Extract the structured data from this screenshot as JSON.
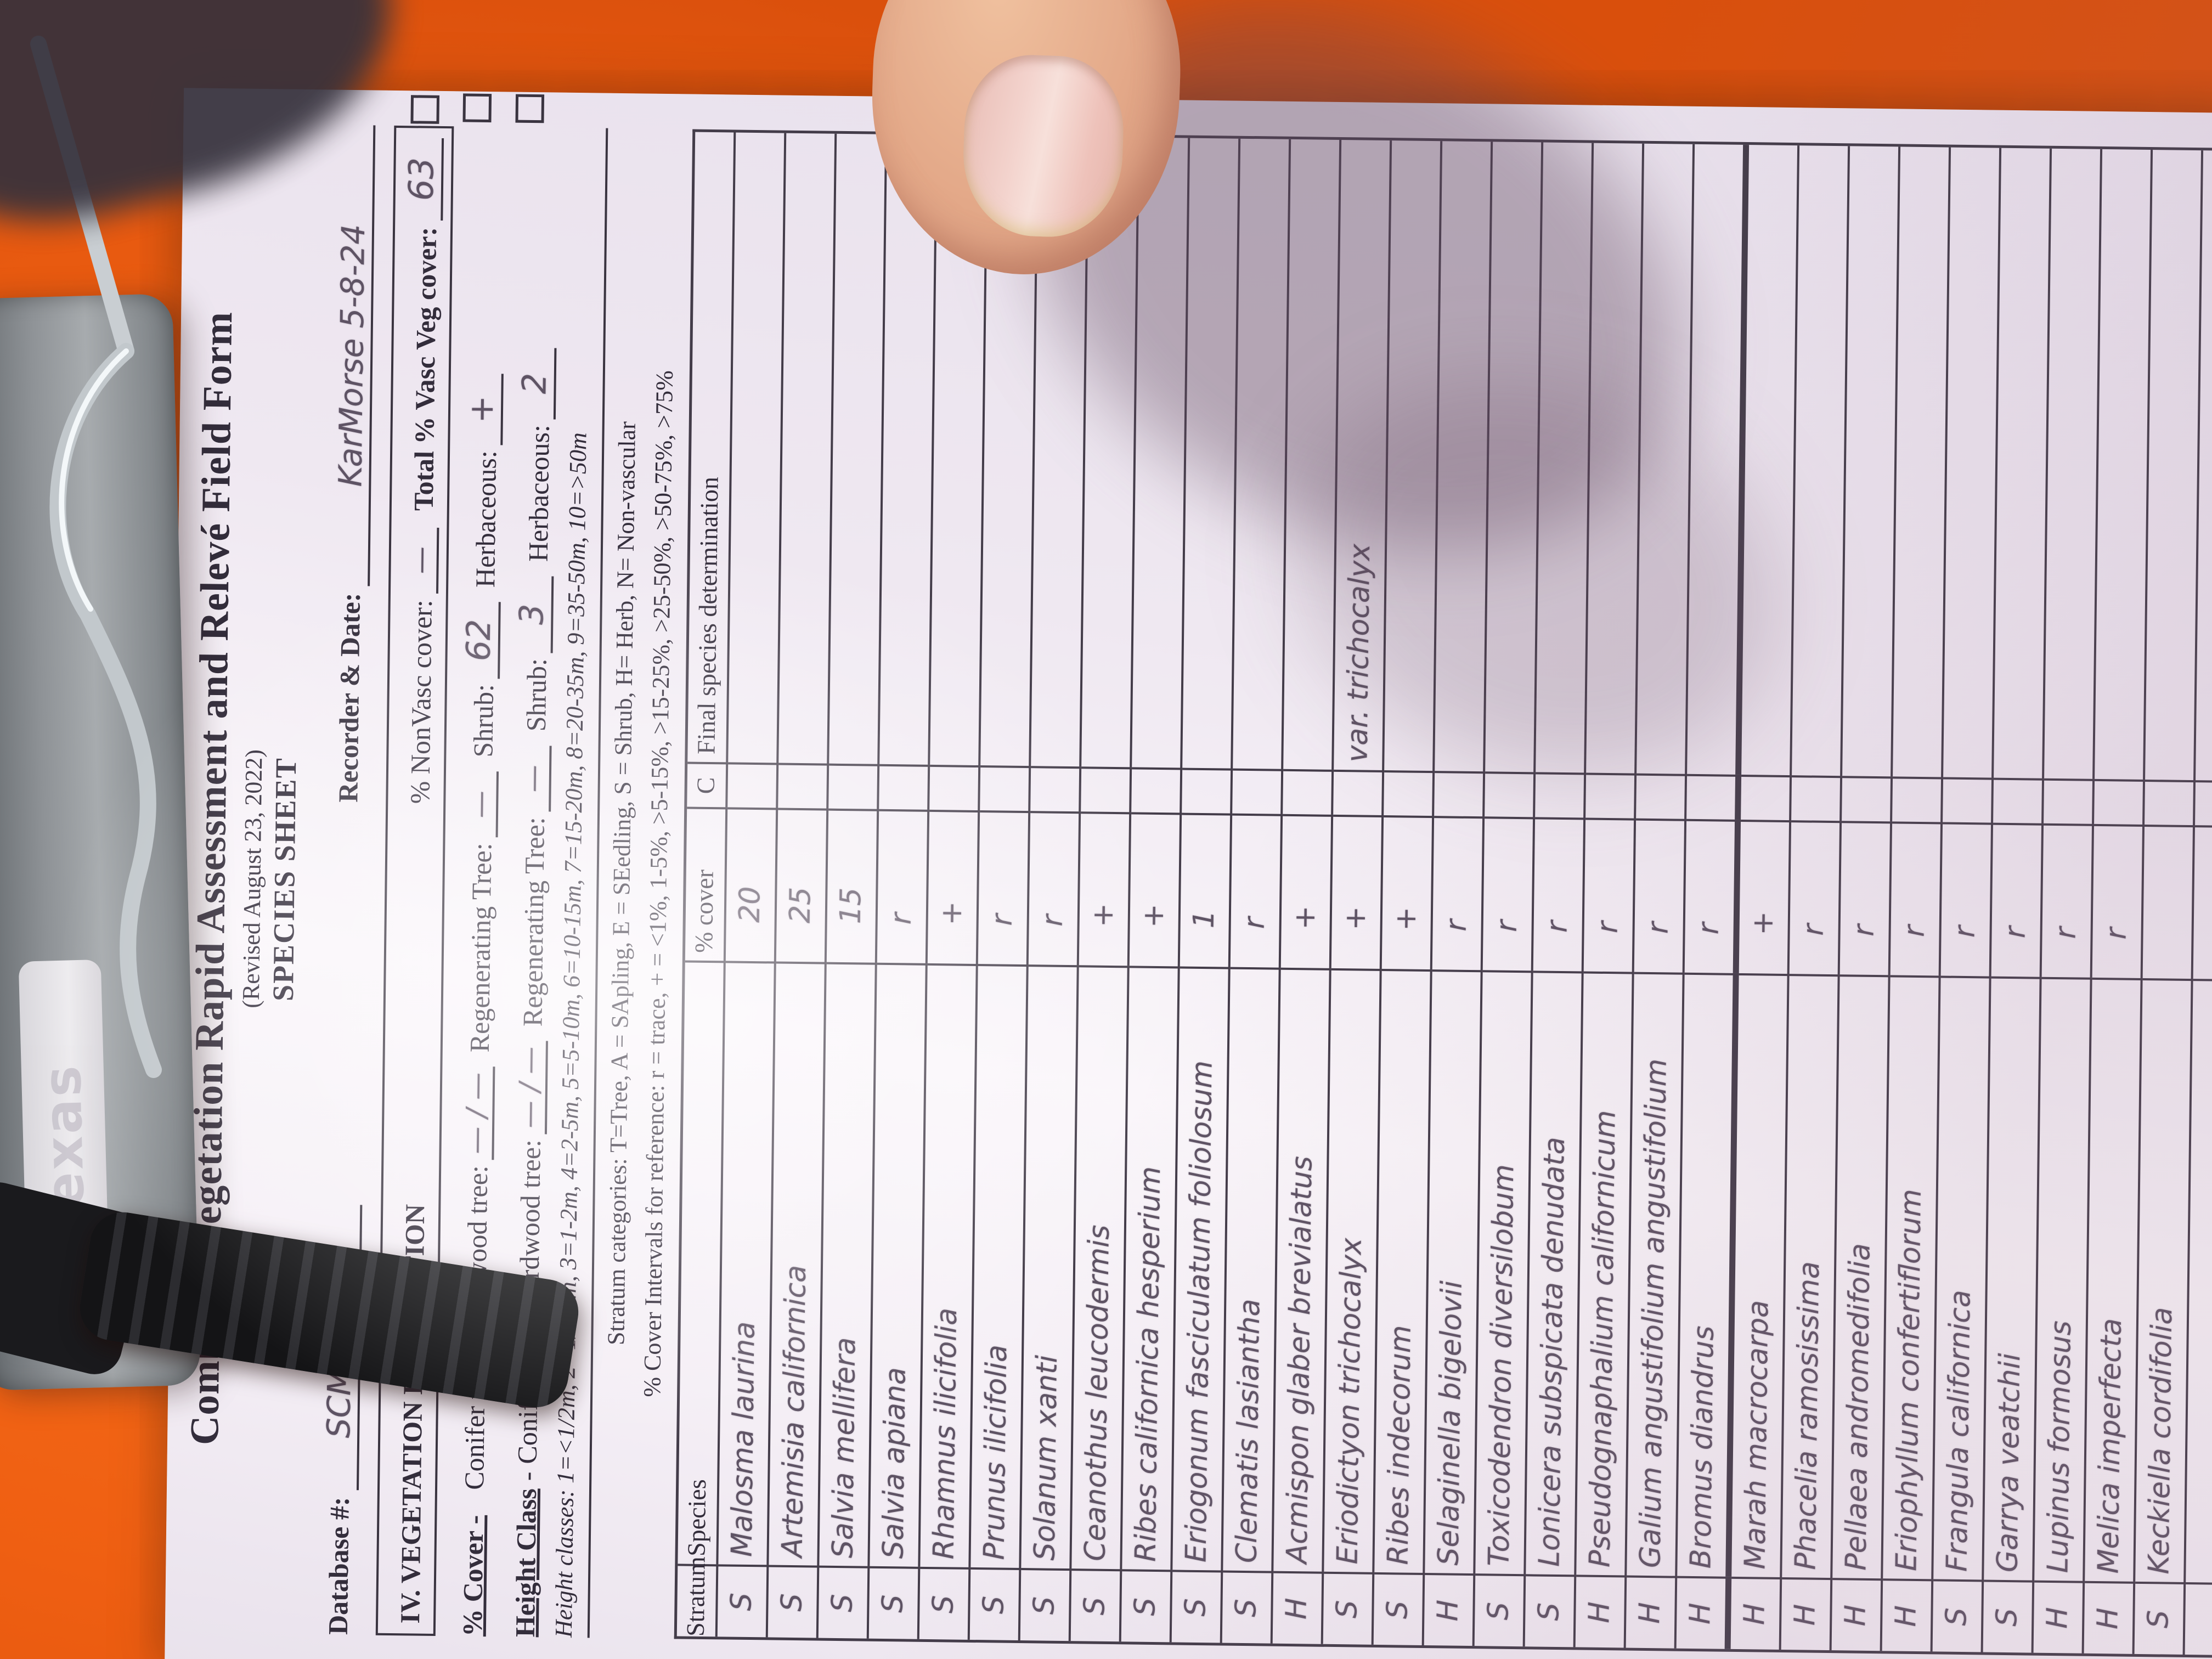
{
  "colors": {
    "table_orange": "#ef5f12",
    "paper": "#f4eef5",
    "ink": "#332d3b",
    "pencil": "#5e5364",
    "clip_metal": "#8e9296",
    "grip_black": "#1a1a1d"
  },
  "clipboard": {
    "brand": "dexas"
  },
  "form": {
    "title": "Combined Vegetation Rapid Assessment and Relevé Field Form",
    "revised": "(Revised August 23, 2022)",
    "sheet_name": "SPECIES SHEET",
    "database_label": "Database #:",
    "database_value": "SCMV-0603",
    "recorder_label": "Recorder & Date:",
    "recorder_value": "KarMorse  5-8-24",
    "section_heading": "IV.  VEGETATION DESCRIPTION",
    "nonvasc_label": "% NonVasc cover:",
    "nonvasc_value": "—",
    "total_vasc_label": "Total % Vasc Veg cover:",
    "total_vasc_value": "63",
    "cover_row_label": "% Cover -",
    "cover_conifer_label": "Conifer tree / Hardwood tree:",
    "cover_conifer_value": "— / —",
    "cover_regen_label": "Regenerating Tree:",
    "cover_regen_value": "—",
    "cover_shrub_label": "Shrub:",
    "cover_shrub_value": "62",
    "cover_herb_label": "Herbaceous:",
    "cover_herb_value": "+",
    "height_row_label": "Height Class",
    "height_dash": "-",
    "height_conifer_label": "Conifer tree / Hardwood tree:",
    "height_conifer_value": "— / —",
    "height_regen_label": "Regenerating Tree:",
    "height_regen_value": "—",
    "height_shrub_label": "Shrub:",
    "height_shrub_value": "3",
    "height_herb_label": "Herbaceous:",
    "height_herb_value": "2",
    "height_classes_line": "Height classes: 1=<1/2m,  2=1/2-1m,  3=1-2m,  4=2-5m,  5=5-10m,  6=10-15m,  7=15-20m,  8=20-35m,  9=35-50m,  10=>50m",
    "stratum_categories_line": "Stratum categories: T=Tree, A = SApling, E = SEedling, S = Shrub, H= Herb, N= Non-vascular",
    "cover_intervals_line": "% Cover Intervals for reference: r = trace,  + = <1%,  1-5%,  >5-15%,  >15-25%,  >25-50%,  >50-75%,  >75%"
  },
  "table": {
    "headers": {
      "stratum": "Stratum",
      "species": "Species",
      "cover": "% cover",
      "c": "C",
      "final": "Final species determination"
    },
    "rows": [
      {
        "stratum": "S",
        "species": "Malosma laurina",
        "cover": "20",
        "c": "",
        "final": ""
      },
      {
        "stratum": "S",
        "species": "Artemisia californica",
        "cover": "25",
        "c": "",
        "final": ""
      },
      {
        "stratum": "S",
        "species": "Salvia mellifera",
        "cover": "15",
        "c": "",
        "final": ""
      },
      {
        "stratum": "S",
        "species": "Salvia apiana",
        "cover": "r",
        "c": "",
        "final": ""
      },
      {
        "stratum": "S",
        "species": "Rhamnus ilicifolia",
        "cover": "+",
        "c": "",
        "final": ""
      },
      {
        "stratum": "S",
        "species": "Prunus ilicifolia",
        "cover": "r",
        "c": "",
        "final": ""
      },
      {
        "stratum": "S",
        "species": "Solanum xanti",
        "cover": "r",
        "c": "",
        "final": ""
      },
      {
        "stratum": "S",
        "species": "Ceanothus leucodermis",
        "cover": "+",
        "c": "",
        "final": ""
      },
      {
        "stratum": "S",
        "species": "Ribes californica hesperium",
        "cover": "+",
        "c": "",
        "final": ""
      },
      {
        "stratum": "S",
        "species": "Eriogonum fasciculatum foliolosum",
        "cover": "1",
        "c": "",
        "final": ""
      },
      {
        "stratum": "S",
        "species": "Clematis lasiantha",
        "cover": "r",
        "c": "",
        "final": ""
      },
      {
        "stratum": "H",
        "species": "Acmispon glaber brevialatus",
        "cover": "+",
        "c": "",
        "final": ""
      },
      {
        "stratum": "S",
        "species": "Eriodictyon trichocalyx",
        "cover": "+",
        "c": "",
        "final": "var. trichocalyx"
      },
      {
        "stratum": "S",
        "species": "Ribes indecorum",
        "cover": "+",
        "c": "",
        "final": ""
      },
      {
        "stratum": "H",
        "species": "Selaginella bigelovii",
        "cover": "r",
        "c": "",
        "final": ""
      },
      {
        "stratum": "S",
        "species": "Toxicodendron diversilobum",
        "cover": "r",
        "c": "",
        "final": ""
      },
      {
        "stratum": "S",
        "species": "Lonicera subspicata denudata",
        "cover": "r",
        "c": "",
        "final": ""
      },
      {
        "stratum": "H",
        "species": "Pseudognaphalium californicum",
        "cover": "r",
        "c": "",
        "final": ""
      },
      {
        "stratum": "H",
        "species": "Galium angustifolium angustifolium",
        "cover": "r",
        "c": "",
        "final": ""
      },
      {
        "stratum": "H",
        "species": "Bromus diandrus",
        "cover": "r",
        "c": "",
        "final": "",
        "thick_rule_below": true
      },
      {
        "stratum": "H",
        "species": "Marah macrocarpa",
        "cover": "+",
        "c": "",
        "final": ""
      },
      {
        "stratum": "H",
        "species": "Phacelia ramosissima",
        "cover": "r",
        "c": "",
        "final": ""
      },
      {
        "stratum": "H",
        "species": "Pellaea andromedifolia",
        "cover": "r",
        "c": "",
        "final": ""
      },
      {
        "stratum": "H",
        "species": "Eriophyllum confertiflorum",
        "cover": "r",
        "c": "",
        "final": ""
      },
      {
        "stratum": "S",
        "species": "Frangula californica",
        "cover": "r",
        "c": "",
        "final": ""
      },
      {
        "stratum": "S",
        "species": "Garrya veatchii",
        "cover": "r",
        "c": "",
        "final": ""
      },
      {
        "stratum": "H",
        "species": "Lupinus formosus",
        "cover": "r",
        "c": "",
        "final": ""
      },
      {
        "stratum": "H",
        "species": "Melica imperfecta",
        "cover": "r",
        "c": "",
        "final": ""
      },
      {
        "stratum": "S",
        "species": "Keckiella cordifolia",
        "cover": "",
        "c": "",
        "final": ""
      },
      {
        "stratum": "",
        "species": "",
        "cover": "",
        "c": "",
        "final": ""
      },
      {
        "stratum": "",
        "species": "",
        "cover": "",
        "c": "",
        "final": ""
      },
      {
        "stratum": "",
        "species": "",
        "cover": "",
        "c": "",
        "final": ""
      },
      {
        "stratum": "",
        "species": "",
        "cover": "",
        "c": "",
        "final": ""
      },
      {
        "stratum": "",
        "species": "",
        "cover": "",
        "c": "",
        "final": ""
      }
    ]
  }
}
